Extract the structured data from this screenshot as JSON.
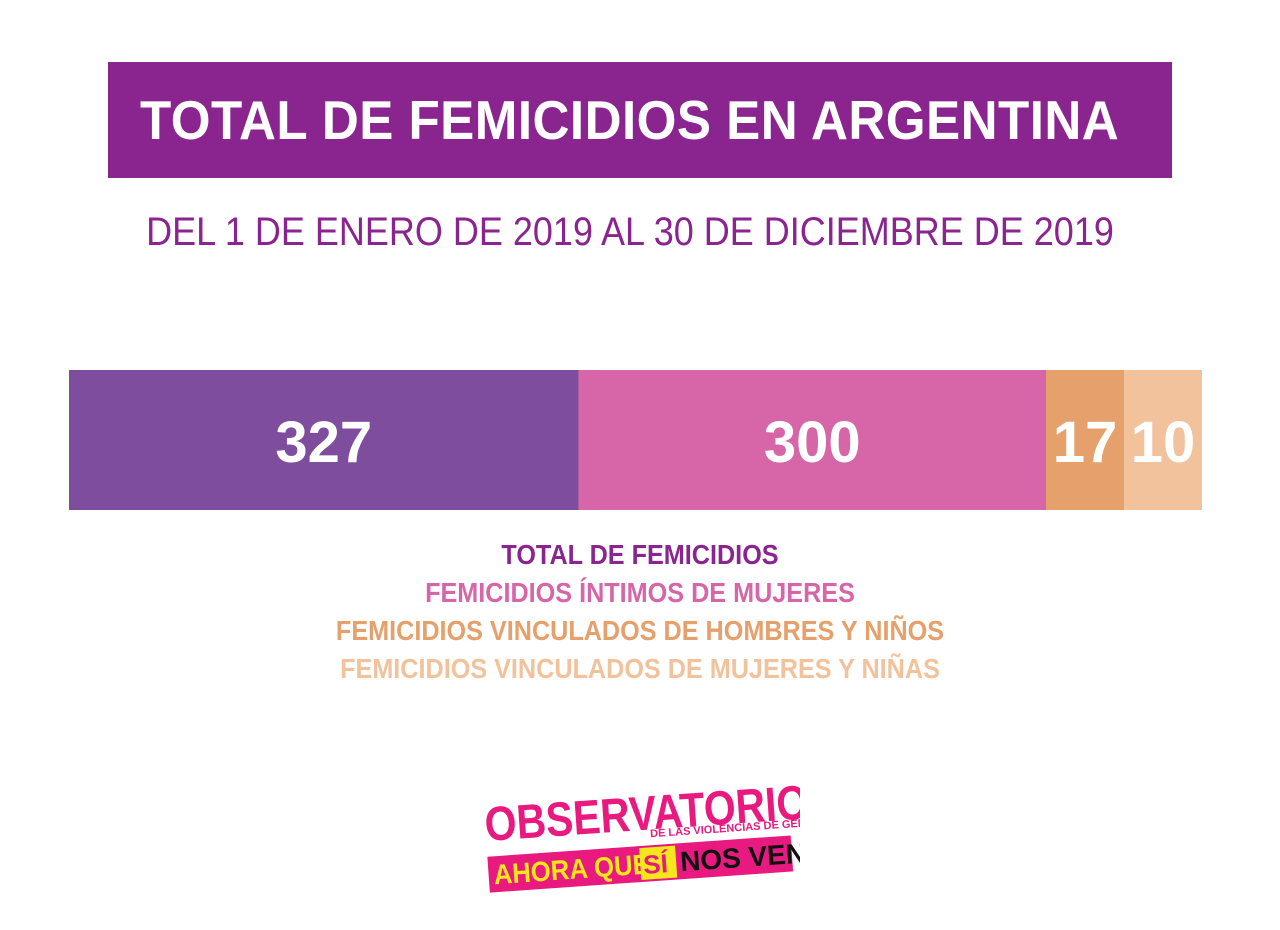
{
  "header": {
    "title": "TOTAL DE FEMICIDIOS EN ARGENTINA",
    "subtitle": "DEL 1 DE ENERO DE 2019 AL 30 DE DICIEMBRE DE 2019"
  },
  "chart_data": {
    "type": "bar",
    "orientation": "horizontal-stacked-segments",
    "title": "TOTAL DE FEMICIDIOS EN ARGENTINA",
    "subtitle": "DEL 1 DE ENERO DE 2019 AL 30 DE DICIEMBRE DE 2019",
    "series": [
      {
        "name": "TOTAL DE FEMICIDIOS",
        "value": 327,
        "label": "327",
        "color": "#7e4d9e"
      },
      {
        "name": "FEMICIDIOS ÍNTIMOS DE MUJERES",
        "value": 300,
        "label": "300",
        "color": "#d666a8"
      },
      {
        "name": "FEMICIDIOS VINCULADOS DE HOMBRES Y NIÑOS",
        "value": 17,
        "label": "17",
        "color": "#e5a06b"
      },
      {
        "name": "FEMICIDIOS VINCULADOS DE MUJERES Y NIÑAS",
        "value": 10,
        "label": "10",
        "color": "#f1c29c"
      }
    ],
    "legend_position": "bottom-center",
    "grid": false
  },
  "legend": {
    "items": [
      {
        "label": "TOTAL DE FEMICIDIOS",
        "color": "#8a258f"
      },
      {
        "label": "FEMICIDIOS ÍNTIMOS DE MUJERES",
        "color": "#d666a8"
      },
      {
        "label": "FEMICIDIOS VINCULADOS DE HOMBRES Y NIÑOS",
        "color": "#e5a06b"
      },
      {
        "label": "FEMICIDIOS VINCULADOS DE MUJERES Y NIÑAS",
        "color": "#f1c29c"
      }
    ]
  },
  "logo": {
    "line1": "OBSERVATORIO",
    "line2": "DE LAS VIOLENCIAS DE GÉNERO",
    "line3a": "AHORA QUE",
    "line3b": "SÍ",
    "line3c": "NOS VEN",
    "pink": "#e8197f",
    "yellow": "#f6e61c",
    "dark": "#111111"
  },
  "colors": {
    "brand_purple": "#8a258f",
    "background": "#ffffff"
  }
}
